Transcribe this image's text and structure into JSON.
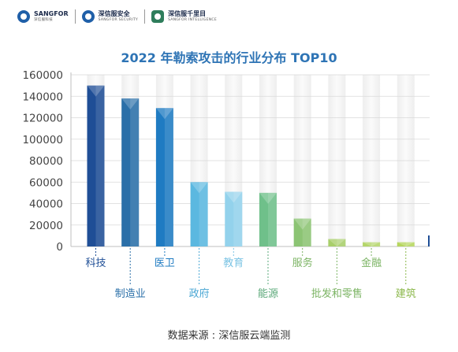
{
  "header": {
    "logos": [
      {
        "name": "SANGFOR",
        "sub": "深信服科技"
      },
      {
        "name": "深信服安全",
        "sub": "SANGFOR SECURITY"
      },
      {
        "name": "深信服千里目",
        "sub": "SANGFOR INTELLIGENCE"
      }
    ]
  },
  "source_text": "数据来源 : 深信服云端监测",
  "colors": {
    "title": "#2e74b5",
    "tick_text": "#444444",
    "gridline": "#d9d9d9"
  },
  "chart_data": {
    "type": "bar",
    "title": "2022 年勒索攻击的行业分布 TOP10",
    "categories": [
      "科技",
      "制造业",
      "医卫",
      "政府",
      "教育",
      "能源",
      "服务",
      "批发和零售",
      "金融",
      "建筑"
    ],
    "values": [
      150000,
      138000,
      129000,
      60000,
      51000,
      50000,
      26000,
      7000,
      4000,
      4000
    ],
    "bar_colors": [
      "#1f4e96",
      "#2a6fa8",
      "#1f7bc2",
      "#5bb8e0",
      "#93d2ec",
      "#6fc08a",
      "#8cc474",
      "#a8cf6a",
      "#b4d56a",
      "#b6d65e"
    ],
    "label_colors": [
      "#1f4e96",
      "#2a6fa8",
      "#1f7bc2",
      "#4aa7d4",
      "#7cc4e4",
      "#5aa878",
      "#7cb464",
      "#7cb464",
      "#7cb464",
      "#8cb84c"
    ],
    "yticks": [
      0,
      20000,
      40000,
      60000,
      80000,
      100000,
      120000,
      140000,
      160000
    ],
    "ylim": [
      0,
      160000
    ],
    "xlabel": "",
    "ylabel": "",
    "legend": "none",
    "grid": true
  }
}
